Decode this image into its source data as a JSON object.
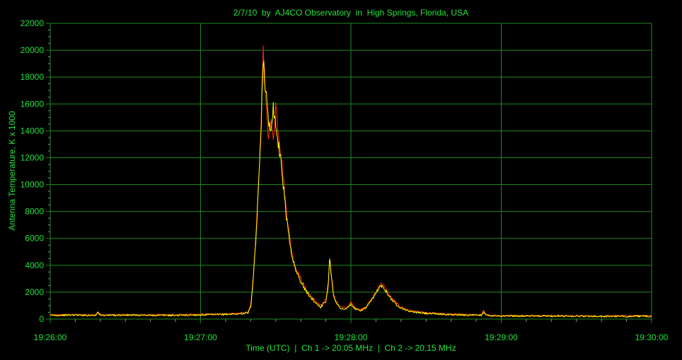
{
  "chart_data": {
    "type": "line",
    "title": "2/7/10  by  AJ4CO Observatory  in  High Springs, Florida, USA",
    "xlabel": "Time (UTC)  |  Ch 1 -> 20.05 MHz  |  Ch 2 -> 20.15 MHz",
    "ylabel": "Antenna Temperature, K x 1000",
    "xlim": [
      0,
      240
    ],
    "ylim": [
      0,
      22000
    ],
    "grid": true,
    "x_ticks": [
      {
        "value": 0,
        "label": "19:26:00"
      },
      {
        "value": 60,
        "label": "19:27:00"
      },
      {
        "value": 120,
        "label": "19:28:00"
      },
      {
        "value": 180,
        "label": "19:29:00"
      },
      {
        "value": 240,
        "label": "19:30:00"
      }
    ],
    "y_ticks": [
      {
        "value": 0,
        "label": "0"
      },
      {
        "value": 2000,
        "label": "2000"
      },
      {
        "value": 4000,
        "label": "4000"
      },
      {
        "value": 6000,
        "label": "6000"
      },
      {
        "value": 8000,
        "label": "8000"
      },
      {
        "value": 10000,
        "label": "10000"
      },
      {
        "value": 12000,
        "label": "12000"
      },
      {
        "value": 14000,
        "label": "14000"
      },
      {
        "value": 16000,
        "label": "16000"
      },
      {
        "value": 18000,
        "label": "18000"
      },
      {
        "value": 20000,
        "label": "20000"
      },
      {
        "value": 22000,
        "label": "22000"
      }
    ],
    "series": [
      {
        "name": "Ch 1 -> 20.05 MHz",
        "color": "#ff2a00",
        "x": [
          0,
          10,
          18,
          19,
          20,
          30,
          50,
          65,
          75,
          79,
          80,
          81,
          82,
          83,
          84,
          85,
          86,
          87,
          88,
          89,
          90,
          91,
          92,
          93,
          94,
          95,
          96,
          97,
          98,
          100,
          102,
          104,
          106,
          108,
          110,
          111,
          111.5,
          112,
          113,
          114,
          116,
          118,
          119,
          120,
          121,
          122,
          124,
          126,
          128,
          130,
          131,
          132,
          133,
          134,
          136,
          138,
          140,
          143,
          146,
          150,
          160,
          170,
          172,
          173,
          174,
          180,
          200,
          220,
          240
        ],
        "y": [
          300,
          320,
          300,
          550,
          300,
          310,
          300,
          350,
          400,
          500,
          1000,
          3000,
          6000,
          9500,
          14000,
          20400,
          16000,
          13500,
          15000,
          13200,
          16000,
          14000,
          12500,
          10500,
          8500,
          7000,
          5500,
          4500,
          3800,
          3000,
          2200,
          1700,
          1300,
          1000,
          1400,
          2800,
          4500,
          3800,
          2000,
          1300,
          900,
          800,
          1000,
          1250,
          1000,
          800,
          700,
          900,
          1400,
          2000,
          2400,
          2600,
          2500,
          2200,
          1600,
          1200,
          900,
          650,
          550,
          450,
          350,
          300,
          300,
          600,
          300,
          250,
          250,
          220,
          230
        ]
      },
      {
        "name": "Ch 2 -> 20.15 MHz",
        "color": "#ffff00",
        "x": [
          0,
          10,
          18,
          19,
          20,
          30,
          50,
          65,
          75,
          79,
          80,
          81,
          82,
          83,
          84,
          85,
          86,
          87,
          88,
          89,
          90,
          91,
          92,
          93,
          94,
          95,
          96,
          97,
          98,
          100,
          102,
          104,
          106,
          108,
          110,
          111,
          111.5,
          112,
          113,
          114,
          116,
          118,
          119,
          120,
          121,
          122,
          124,
          126,
          128,
          130,
          131,
          132,
          133,
          134,
          136,
          138,
          140,
          143,
          146,
          150,
          160,
          170,
          172,
          173,
          174,
          180,
          200,
          220,
          240
        ],
        "y": [
          280,
          300,
          280,
          500,
          280,
          290,
          280,
          330,
          380,
          480,
          900,
          2800,
          5700,
          9200,
          13500,
          19500,
          17000,
          14800,
          14200,
          15800,
          14500,
          13000,
          12000,
          10000,
          8000,
          6600,
          5200,
          4300,
          3600,
          2800,
          2100,
          1600,
          1200,
          900,
          1300,
          2600,
          4600,
          3600,
          1900,
          1200,
          800,
          700,
          900,
          1100,
          900,
          700,
          650,
          850,
          1300,
          1900,
          2300,
          2500,
          2400,
          2100,
          1500,
          1100,
          850,
          600,
          500,
          420,
          330,
          280,
          280,
          550,
          280,
          230,
          230,
          200,
          210
        ]
      }
    ]
  },
  "colors": {
    "background": "#000000",
    "grid": "#1f8a1f",
    "text": "#22e23a"
  }
}
